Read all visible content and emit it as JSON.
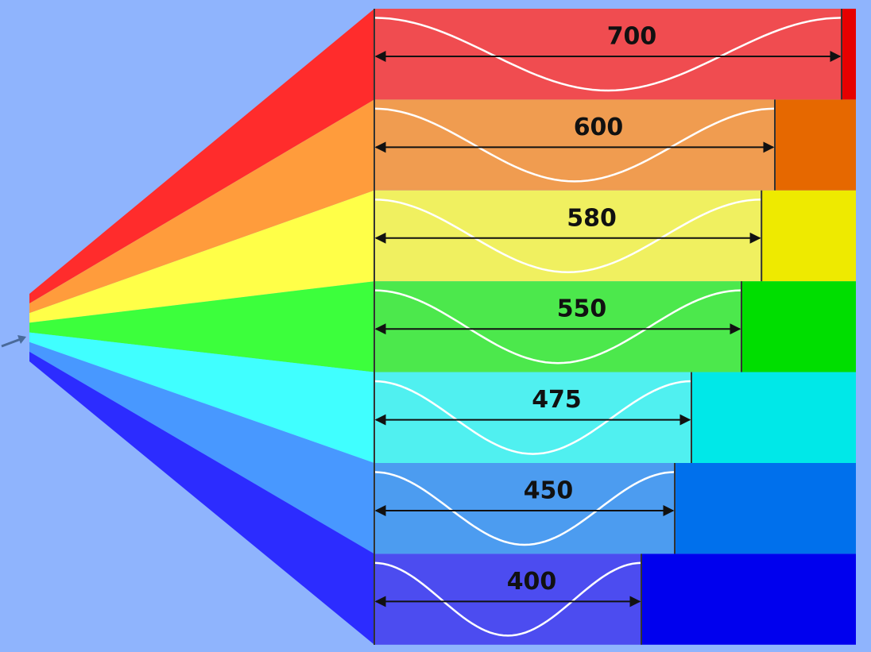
{
  "bands": [
    {
      "wavelength": 700,
      "bar_color": "#f04c50",
      "solid_color": "#e60000",
      "fan_color": "#ff2c2c"
    },
    {
      "wavelength": 600,
      "bar_color": "#f09c50",
      "solid_color": "#e66800",
      "fan_color": "#ff9c3c"
    },
    {
      "wavelength": 580,
      "bar_color": "#f0f060",
      "solid_color": "#eeea00",
      "fan_color": "#ffff48"
    },
    {
      "wavelength": 550,
      "bar_color": "#4ce84c",
      "solid_color": "#00de00",
      "fan_color": "#3cff3c"
    },
    {
      "wavelength": 475,
      "bar_color": "#50f0f0",
      "solid_color": "#00e8e8",
      "fan_color": "#40ffff"
    },
    {
      "wavelength": 450,
      "bar_color": "#4c9cf0",
      "solid_color": "#0070ec",
      "fan_color": "#4898ff"
    },
    {
      "wavelength": 400,
      "bar_color": "#4c4cf0",
      "solid_color": "#0000ee",
      "fan_color": "#2c2cff"
    }
  ]
}
